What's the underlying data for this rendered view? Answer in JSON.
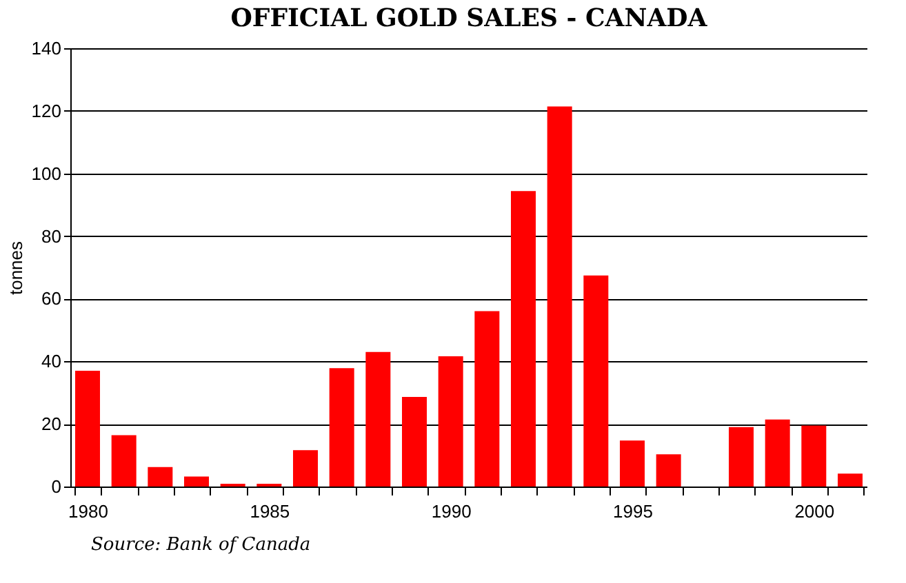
{
  "chart_data": {
    "type": "bar",
    "title": "OFFICIAL GOLD SALES - CANADA",
    "ylabel": "tonnes",
    "categories": [
      "1980",
      null,
      null,
      null,
      null,
      "1985",
      null,
      null,
      null,
      null,
      "1990",
      null,
      null,
      null,
      null,
      "1995",
      null,
      null,
      null,
      null,
      "2000",
      null
    ],
    "values": [
      37,
      16.4,
      6.2,
      3.2,
      0.9,
      0.9,
      11.6,
      37.8,
      43,
      28.6,
      41.6,
      56,
      94.4,
      121.4,
      67.4,
      14.7,
      10.3,
      null,
      19,
      21.4,
      19.5,
      4.1
    ],
    "color": "#ff0000",
    "ylim": [
      0,
      140
    ],
    "yticks": [
      0,
      20,
      40,
      60,
      80,
      100,
      120,
      140
    ],
    "grid": "y",
    "annotations": [
      "Source: Bank of Canada"
    ]
  }
}
